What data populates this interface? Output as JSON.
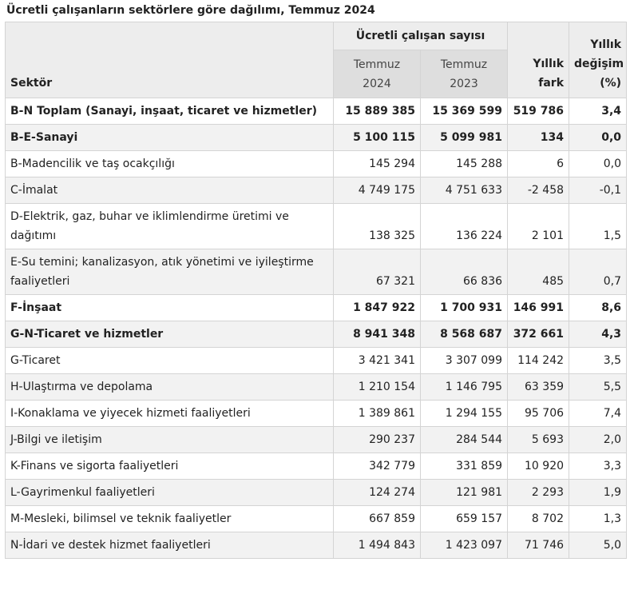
{
  "caption": "Ücretli çalışanların sektörlere göre dağılımı, Temmuz 2024",
  "headers": {
    "sector": "Sektör",
    "group": "Ücretli çalışan sayısı",
    "col1_line1": "Temmuz",
    "col1_line2": "2024",
    "col2_line1": "Temmuz",
    "col2_line2": "2023",
    "col3_line1": "Yıllık",
    "col3_line2": "fark",
    "col4_line1": "Yıllık",
    "col4_line2": "değişim",
    "col4_line3": "(%)"
  },
  "rows": [
    {
      "sector": "B-N Toplam (Sanayi, inşaat, ticaret ve hizmetler)",
      "jul2024": "15 889 385",
      "jul2023": "15 369 599",
      "diff": "519 786",
      "pct": "3,4"
    },
    {
      "sector": "B-E-Sanayi",
      "jul2024": "5 100 115",
      "jul2023": "5 099 981",
      "diff": "134",
      "pct": "0,0"
    },
    {
      "sector": "B-Madencilik ve taş ocakçılığı",
      "jul2024": "145 294",
      "jul2023": "145 288",
      "diff": "6",
      "pct": "0,0"
    },
    {
      "sector": "C-İmalat",
      "jul2024": "4 749 175",
      "jul2023": "4 751 633",
      "diff": "-2 458",
      "pct": "-0,1"
    },
    {
      "sector": "D-Elektrik, gaz, buhar ve iklimlendirme üretimi ve dağıtımı",
      "jul2024": "138 325",
      "jul2023": "136 224",
      "diff": "2 101",
      "pct": "1,5"
    },
    {
      "sector": "E-Su temini; kanalizasyon, atık yönetimi ve iyileştirme faaliyetleri",
      "jul2024": "67 321",
      "jul2023": "66 836",
      "diff": "485",
      "pct": "0,7"
    },
    {
      "sector": "F-İnşaat",
      "jul2024": "1 847 922",
      "jul2023": "1 700 931",
      "diff": "146 991",
      "pct": "8,6"
    },
    {
      "sector": "G-N-Ticaret ve hizmetler",
      "jul2024": "8 941 348",
      "jul2023": "8 568 687",
      "diff": "372 661",
      "pct": "4,3"
    },
    {
      "sector": "G-Ticaret",
      "jul2024": "3 421 341",
      "jul2023": "3 307 099",
      "diff": "114 242",
      "pct": "3,5"
    },
    {
      "sector": "H-Ulaştırma ve depolama",
      "jul2024": "1 210 154",
      "jul2023": "1 146 795",
      "diff": "63 359",
      "pct": "5,5"
    },
    {
      "sector": "I-Konaklama ve yiyecek hizmeti faaliyetleri",
      "jul2024": "1 389 861",
      "jul2023": "1 294 155",
      "diff": "95 706",
      "pct": "7,4"
    },
    {
      "sector": "J-Bilgi ve iletişim",
      "jul2024": "290 237",
      "jul2023": "284 544",
      "diff": "5 693",
      "pct": "2,0"
    },
    {
      "sector": "K-Finans ve sigorta faaliyetleri",
      "jul2024": "342 779",
      "jul2023": "331 859",
      "diff": "10 920",
      "pct": "3,3"
    },
    {
      "sector": "L-Gayrimenkul faaliyetleri",
      "jul2024": "124 274",
      "jul2023": "121 981",
      "diff": "2 293",
      "pct": "1,9"
    },
    {
      "sector": "M-Mesleki, bilimsel ve teknik faaliyetler",
      "jul2024": "667 859",
      "jul2023": "659 157",
      "diff": "8 702",
      "pct": "1,3"
    },
    {
      "sector": "N-İdari ve destek hizmet faaliyetleri",
      "jul2024": "1 494 843",
      "jul2023": "1 423 097",
      "diff": "71 746",
      "pct": "5,0"
    }
  ]
}
